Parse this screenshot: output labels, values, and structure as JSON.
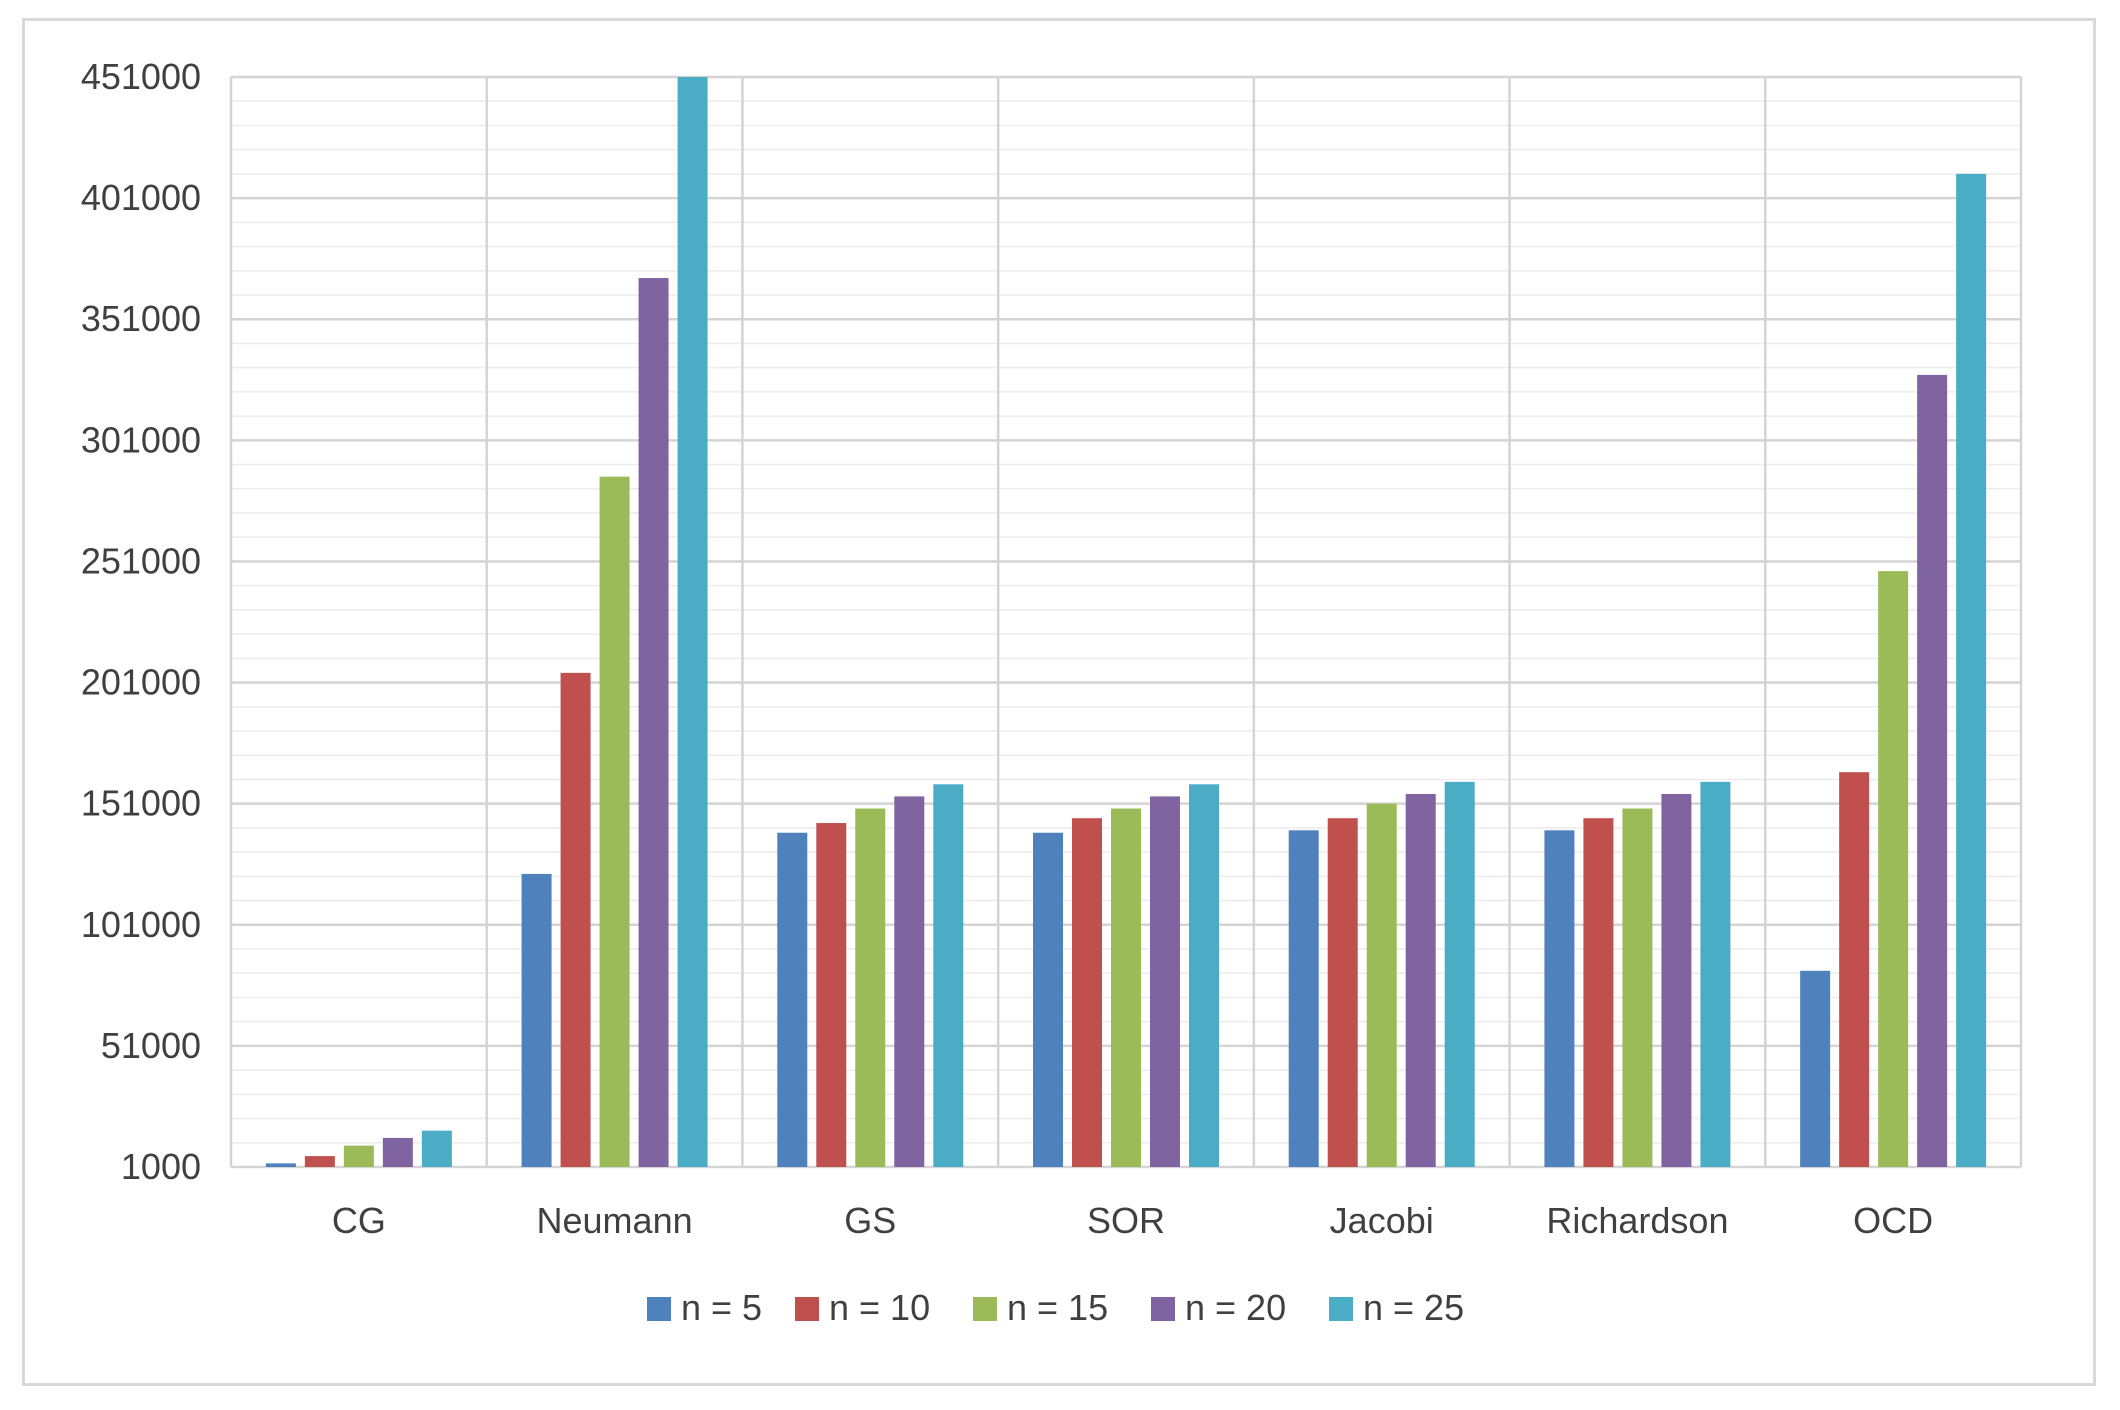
{
  "chart_data": {
    "type": "bar",
    "title": "",
    "xlabel": "",
    "ylabel": "",
    "categories": [
      "CG",
      "Neumann",
      "GS",
      "SOR",
      "Jacobi",
      "Richardson",
      "OCD"
    ],
    "yticks": [
      1000,
      51000,
      101000,
      151000,
      201000,
      251000,
      301000,
      351000,
      401000,
      451000
    ],
    "ylim": [
      1000,
      451000
    ],
    "grid": true,
    "legend_position": "bottom",
    "series": [
      {
        "name": "n = 5",
        "color": "#4f81bd",
        "values": [
          2500,
          122000,
          139000,
          139000,
          140000,
          140000,
          82000
        ]
      },
      {
        "name": "n = 10",
        "color": "#c0504d",
        "values": [
          5500,
          205000,
          143000,
          145000,
          145000,
          145000,
          164000
        ]
      },
      {
        "name": "n = 15",
        "color": "#9bbb59",
        "values": [
          9800,
          286000,
          149000,
          149000,
          151000,
          149000,
          247000
        ]
      },
      {
        "name": "n = 20",
        "color": "#8064a2",
        "values": [
          13000,
          368000,
          154000,
          154000,
          155000,
          155000,
          328000
        ]
      },
      {
        "name": "n = 25",
        "color": "#4bacc6",
        "values": [
          16000,
          451000,
          159000,
          159000,
          160000,
          160000,
          411000
        ]
      }
    ]
  }
}
